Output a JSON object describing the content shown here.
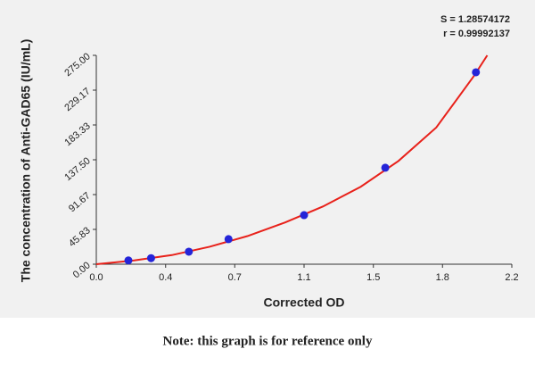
{
  "chart_data": {
    "type": "scatter",
    "x_label": "Corrected OD",
    "y_label": "The concentration of Anti-GAD65 (IU/mL)",
    "annotations": [
      "S = 1.28574172",
      "r = 0.99992137"
    ],
    "note": "Note: this graph is for reference only",
    "xlim": [
      0,
      2.2
    ],
    "ylim": [
      0,
      275
    ],
    "xticks": [
      {
        "value": 0,
        "label": "0.0"
      },
      {
        "value": 0.367,
        "label": "0.4"
      },
      {
        "value": 0.733,
        "label": "0.7"
      },
      1.1,
      {
        "value": 1.467,
        "label": "1.5"
      },
      {
        "value": 1.833,
        "label": "1.8"
      },
      2.2
    ],
    "yticks": [
      {
        "value": 0,
        "label": "0.00"
      },
      45.83,
      91.67,
      {
        "value": 137.5,
        "label": "137.50"
      },
      183.33,
      229.17,
      {
        "value": 275,
        "label": "275.00"
      }
    ],
    "grid": false,
    "series": [
      {
        "type": "scatter",
        "color": "#2424d8",
        "x": [
          0.17,
          0.29,
          0.49,
          0.7,
          1.1,
          1.53,
          2.01
        ],
        "values": [
          5,
          8,
          16.5,
          33,
          64.6,
          127,
          252.7
        ]
      },
      {
        "type": "line",
        "color": "#e8211a",
        "x": [
          0,
          0.2,
          0.4,
          0.6,
          0.8,
          1.0,
          1.2,
          1.4,
          1.6,
          1.8,
          2.0,
          2.07
        ],
        "values": [
          0,
          5,
          12,
          23,
          37,
          55,
          76,
          102,
          136,
          180,
          248,
          275
        ]
      }
    ]
  }
}
